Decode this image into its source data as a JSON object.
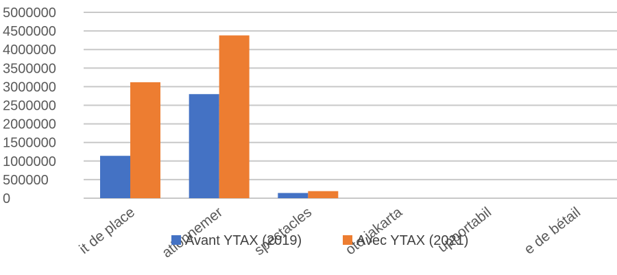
{
  "chart_data": {
    "type": "bar",
    "categories": [
      "Droit de place",
      "Stationnement",
      "Taxe sur les spectacles",
      "Taxe moto jakarta",
      "Taxe support mobile",
      "Marché de bétail"
    ],
    "category_labels_visible": [
      "it de place",
      "ationnemer",
      "spectacles",
      "oto jakarta",
      "upportabil",
      "e de bétail"
    ],
    "series": [
      {
        "name": "Avant YTAX (2019)",
        "color": "#4472C4",
        "values": [
          1140000,
          2800000,
          140000,
          0,
          0,
          0
        ]
      },
      {
        "name": "Avec YTAX (2021)",
        "color": "#ED7D31",
        "values": [
          3120000,
          4380000,
          190000,
          0,
          0,
          0
        ]
      }
    ],
    "yticks": [
      "5000000",
      "4500000",
      "4000000",
      "3500000",
      "3000000",
      "2500000",
      "2000000",
      "1500000",
      "1000000",
      "500000",
      "0"
    ],
    "ylim": [
      0,
      5000000
    ],
    "grid": true,
    "legend": "bottom-center"
  }
}
